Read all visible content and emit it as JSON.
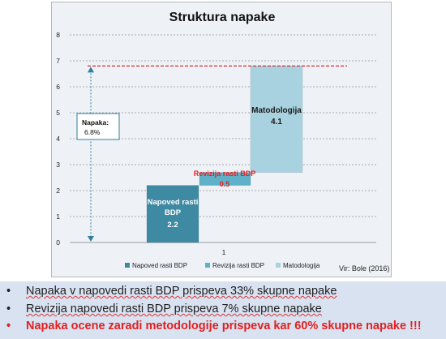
{
  "chart_data": {
    "type": "bar",
    "subtype": "waterfall",
    "title": "Struktura napake",
    "categories": [
      "1"
    ],
    "ylim": [
      0,
      8
    ],
    "yticks": [
      "0",
      "1",
      "2",
      "3",
      "4",
      "5",
      "6",
      "7",
      "8"
    ],
    "grid": true,
    "legend_position": "bottom",
    "series": [
      {
        "name": "Napoved rasti BDP",
        "start": 0,
        "value": 2.2,
        "label_lines": [
          "Napoved rasti",
          "BDP",
          "2.2"
        ],
        "color": "#3f8aa3",
        "label_color": "#ffffff"
      },
      {
        "name": "Revizija rasti BDP",
        "start": 2.2,
        "value": 0.5,
        "label_lines": [
          "Revizija rasti BDP",
          "0.5"
        ],
        "color": "#5fb0c9",
        "label_color": "#e82020"
      },
      {
        "name": "Matodologija",
        "start": 2.7,
        "value": 4.1,
        "label_lines": [
          "Matodologija",
          "4.1"
        ],
        "color": "#a9d2e0",
        "label_color": "#1a1a1a"
      }
    ],
    "total_line": {
      "value": 6.8,
      "color": "#d22b2b"
    },
    "annotation": {
      "lines": [
        "Napaka:",
        "6.8%"
      ],
      "from": 0,
      "to": 6.8
    },
    "source": "Vir: Bole (2016)"
  },
  "bullets": [
    {
      "marker": "•",
      "text": "Napaka v napovedi rasti BDP prispeva 33% skupne napake"
    },
    {
      "marker": "•",
      "text": "Revizija napovedi rasti BDP prispeva 7% skupne napake"
    },
    {
      "marker": "•",
      "text": "Napaka ocene zaradi metodologije prispeva kar 60% skupne napake !!!"
    }
  ]
}
